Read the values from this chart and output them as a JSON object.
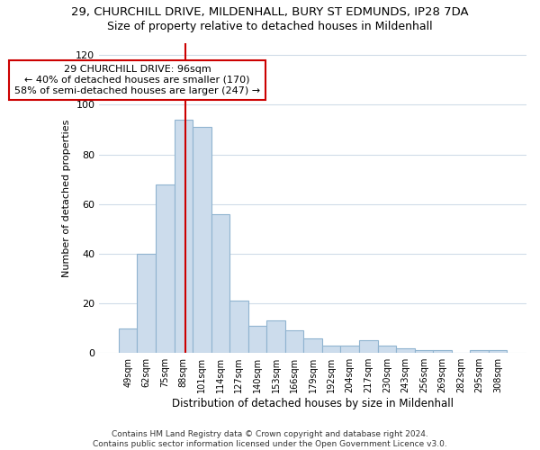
{
  "title": "29, CHURCHILL DRIVE, MILDENHALL, BURY ST EDMUNDS, IP28 7DA",
  "subtitle": "Size of property relative to detached houses in Mildenhall",
  "xlabel": "Distribution of detached houses by size in Mildenhall",
  "ylabel": "Number of detached properties",
  "categories": [
    "49sqm",
    "62sqm",
    "75sqm",
    "88sqm",
    "101sqm",
    "114sqm",
    "127sqm",
    "140sqm",
    "153sqm",
    "166sqm",
    "179sqm",
    "192sqm",
    "204sqm",
    "217sqm",
    "230sqm",
    "243sqm",
    "256sqm",
    "269sqm",
    "282sqm",
    "295sqm",
    "308sqm"
  ],
  "values": [
    10,
    40,
    68,
    94,
    91,
    56,
    21,
    11,
    13,
    9,
    6,
    3,
    3,
    5,
    3,
    2,
    1,
    1,
    0,
    1,
    1
  ],
  "bar_color": "#ccdcec",
  "bar_edge_color": "#90b4d0",
  "annotation_text": "29 CHURCHILL DRIVE: 96sqm\n← 40% of detached houses are smaller (170)\n58% of semi-detached houses are larger (247) →",
  "annotation_box_color": "#ffffff",
  "annotation_box_edge_color": "#cc0000",
  "ylim": [
    0,
    125
  ],
  "yticks": [
    0,
    20,
    40,
    60,
    80,
    100,
    120
  ],
  "footer_text": "Contains HM Land Registry data © Crown copyright and database right 2024.\nContains public sector information licensed under the Open Government Licence v3.0.",
  "title_fontsize": 9.5,
  "subtitle_fontsize": 9,
  "background_color": "#ffffff",
  "grid_color": "#d0dce8"
}
